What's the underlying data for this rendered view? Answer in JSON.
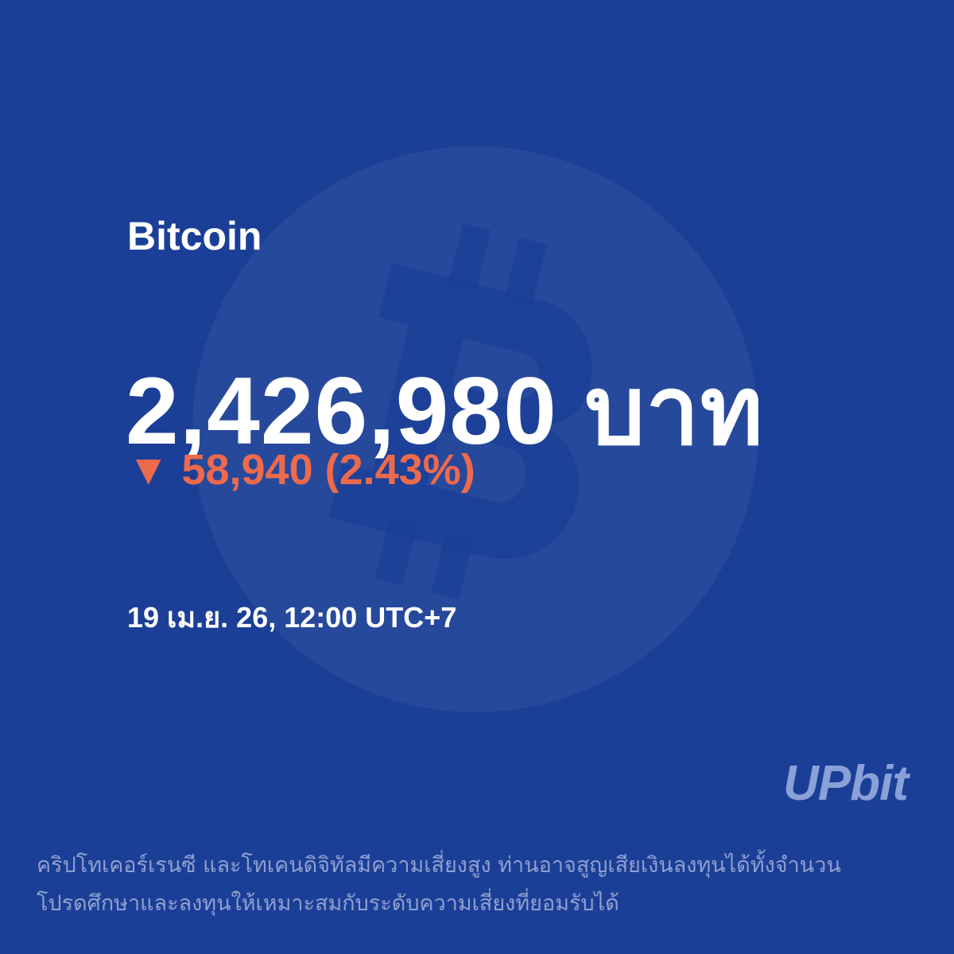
{
  "coin": "Bitcoin",
  "price": "2,426,980 บาท",
  "change": "▼ 58,940 (2.43%)",
  "timestamp": "19 เม.ย. 26, 12:00 UTC+7",
  "logo": "UPbit",
  "disclaimer": [
    "คริปโทเคอร์เรนซี และโทเคนดิจิทัลมีความเสี่ยงสูง ท่านอาจสูญเสียเงินลงทุนได้ทั้งจำนวน",
    "โปรดศึกษาและลงทุนให้เหมาะสมกับระดับความเสี่ยงที่ยอมรับได้"
  ]
}
